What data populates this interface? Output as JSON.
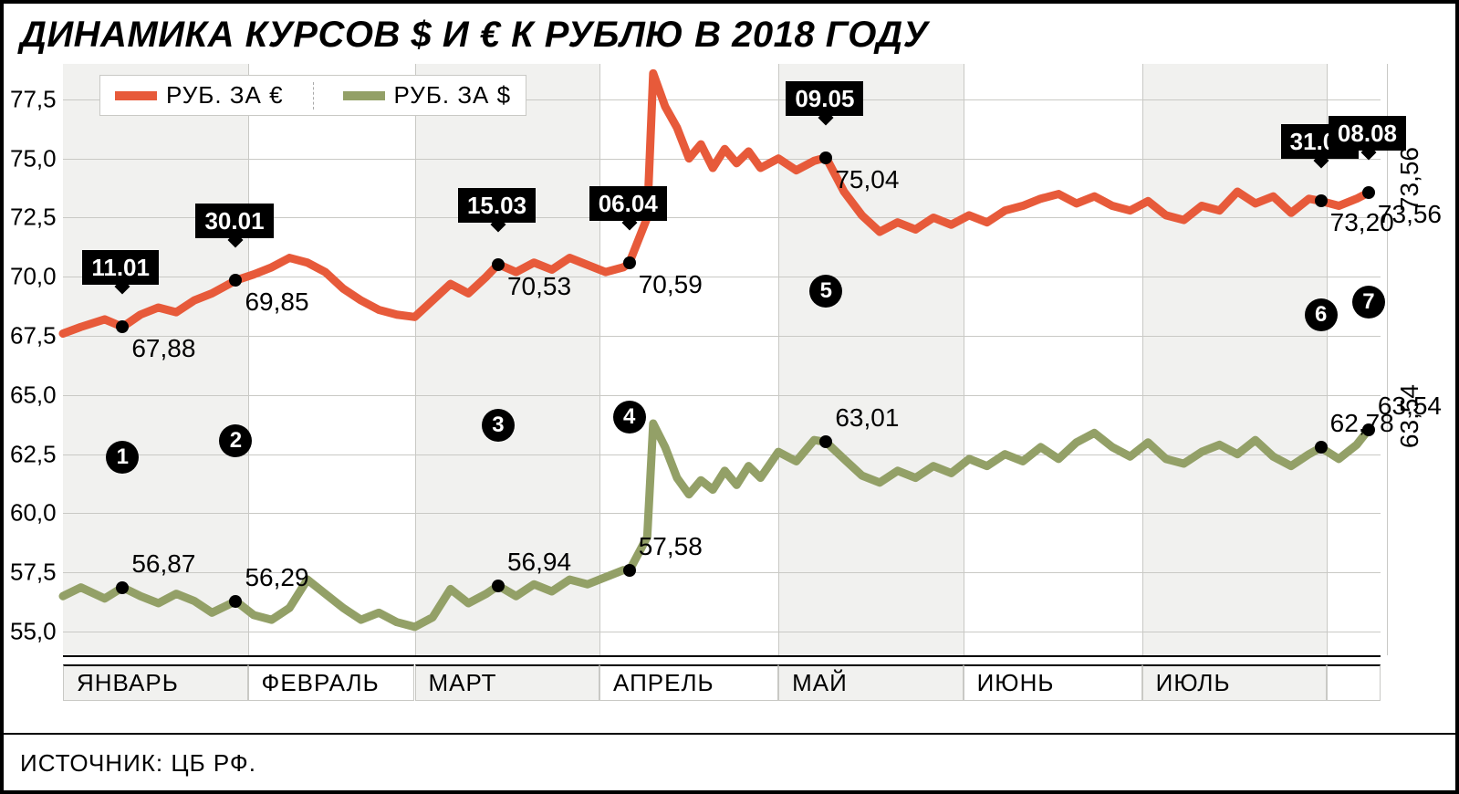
{
  "title": "ДИНАМИКА КУРСОВ $ И € К РУБЛЮ В 2018 ГОДУ",
  "source": "ИСТОЧНИК: ЦБ РФ.",
  "colors": {
    "euro": "#e75a3a",
    "usd": "#93a067",
    "grid": "#c9c9c5",
    "shade": "#f1f1ef",
    "text": "#000000",
    "bg": "#ffffff"
  },
  "legend": {
    "euro": "РУБ. ЗА €",
    "usd": "РУБ. ЗА $"
  },
  "y_axis": {
    "min": 54.0,
    "max": 79.0,
    "ticks": [
      55.0,
      57.5,
      60.0,
      62.5,
      65.0,
      67.5,
      70.0,
      72.5,
      75.0,
      77.5
    ],
    "tick_labels": [
      "55,0",
      "57,5",
      "60,0",
      "62,5",
      "65,0",
      "67,5",
      "70,0",
      "72,5",
      "75,0",
      "77,5"
    ]
  },
  "x_axis": {
    "day_start": 1,
    "day_end": 222,
    "month_starts": [
      1,
      32,
      60,
      91,
      121,
      152,
      182,
      213
    ],
    "month_labels": [
      "ЯНВАРЬ",
      "ФЕВРАЛЬ",
      "МАРТ",
      "АПРЕЛЬ",
      "МАЙ",
      "ИЮНЬ",
      "ИЮЛЬ"
    ],
    "shaded_months": [
      0,
      2,
      4,
      6
    ]
  },
  "events": [
    {
      "n": 1,
      "date": "11.01",
      "day": 11,
      "eur": 67.88,
      "usd": 56.87,
      "eur_label": "67,88",
      "usd_label": "56,87"
    },
    {
      "n": 2,
      "date": "30.01",
      "day": 30,
      "eur": 69.85,
      "usd": 56.29,
      "eur_label": "69,85",
      "usd_label": "56,29"
    },
    {
      "n": 3,
      "date": "15.03",
      "day": 74,
      "eur": 70.53,
      "usd": 56.94,
      "eur_label": "70,53",
      "usd_label": "56,94"
    },
    {
      "n": 4,
      "date": "06.04",
      "day": 96,
      "eur": 70.59,
      "usd": 57.58,
      "eur_label": "70,59",
      "usd_label": "57,58"
    },
    {
      "n": 5,
      "date": "09.05",
      "day": 129,
      "eur": 75.04,
      "usd": 63.01,
      "eur_label": "75,04",
      "usd_label": "63,01"
    },
    {
      "n": 6,
      "date": "31.07",
      "day": 212,
      "eur": 73.2,
      "usd": 62.78,
      "eur_label": "73,20",
      "usd_label": "62,78"
    },
    {
      "n": 7,
      "date": "08.08",
      "day": 220,
      "eur": 73.56,
      "usd": 63.54,
      "eur_label": "73,56",
      "usd_label": "63,54"
    }
  ],
  "series_euro": [
    [
      1,
      67.6
    ],
    [
      4,
      67.88
    ],
    [
      8,
      68.2
    ],
    [
      11,
      67.88
    ],
    [
      14,
      68.4
    ],
    [
      17,
      68.7
    ],
    [
      20,
      68.5
    ],
    [
      23,
      69.0
    ],
    [
      26,
      69.3
    ],
    [
      30,
      69.85
    ],
    [
      33,
      70.1
    ],
    [
      36,
      70.4
    ],
    [
      39,
      70.8
    ],
    [
      42,
      70.6
    ],
    [
      45,
      70.2
    ],
    [
      48,
      69.5
    ],
    [
      51,
      69.0
    ],
    [
      54,
      68.6
    ],
    [
      57,
      68.4
    ],
    [
      60,
      68.3
    ],
    [
      63,
      69.0
    ],
    [
      66,
      69.7
    ],
    [
      69,
      69.3
    ],
    [
      72,
      70.0
    ],
    [
      74,
      70.53
    ],
    [
      77,
      70.2
    ],
    [
      80,
      70.6
    ],
    [
      83,
      70.3
    ],
    [
      86,
      70.8
    ],
    [
      89,
      70.5
    ],
    [
      92,
      70.2
    ],
    [
      95,
      70.4
    ],
    [
      96,
      70.59
    ],
    [
      99,
      72.5
    ],
    [
      100,
      78.6
    ],
    [
      102,
      77.2
    ],
    [
      104,
      76.3
    ],
    [
      106,
      75.0
    ],
    [
      108,
      75.6
    ],
    [
      110,
      74.6
    ],
    [
      112,
      75.4
    ],
    [
      114,
      74.8
    ],
    [
      116,
      75.3
    ],
    [
      118,
      74.6
    ],
    [
      121,
      75.0
    ],
    [
      124,
      74.5
    ],
    [
      127,
      74.9
    ],
    [
      129,
      75.04
    ],
    [
      132,
      73.6
    ],
    [
      135,
      72.6
    ],
    [
      138,
      71.9
    ],
    [
      141,
      72.3
    ],
    [
      144,
      72.0
    ],
    [
      147,
      72.5
    ],
    [
      150,
      72.2
    ],
    [
      153,
      72.6
    ],
    [
      156,
      72.3
    ],
    [
      159,
      72.8
    ],
    [
      162,
      73.0
    ],
    [
      165,
      73.3
    ],
    [
      168,
      73.5
    ],
    [
      171,
      73.1
    ],
    [
      174,
      73.4
    ],
    [
      177,
      73.0
    ],
    [
      180,
      72.8
    ],
    [
      183,
      73.2
    ],
    [
      186,
      72.6
    ],
    [
      189,
      72.4
    ],
    [
      192,
      73.0
    ],
    [
      195,
      72.8
    ],
    [
      198,
      73.6
    ],
    [
      201,
      73.1
    ],
    [
      204,
      73.4
    ],
    [
      207,
      72.7
    ],
    [
      210,
      73.3
    ],
    [
      212,
      73.2
    ],
    [
      215,
      73.0
    ],
    [
      218,
      73.3
    ],
    [
      220,
      73.56
    ]
  ],
  "series_usd": [
    [
      1,
      56.5
    ],
    [
      4,
      56.87
    ],
    [
      8,
      56.4
    ],
    [
      11,
      56.87
    ],
    [
      14,
      56.5
    ],
    [
      17,
      56.2
    ],
    [
      20,
      56.6
    ],
    [
      23,
      56.3
    ],
    [
      26,
      55.8
    ],
    [
      30,
      56.29
    ],
    [
      33,
      55.7
    ],
    [
      36,
      55.5
    ],
    [
      39,
      56.0
    ],
    [
      42,
      57.2
    ],
    [
      45,
      56.6
    ],
    [
      48,
      56.0
    ],
    [
      51,
      55.5
    ],
    [
      54,
      55.8
    ],
    [
      57,
      55.4
    ],
    [
      60,
      55.2
    ],
    [
      63,
      55.6
    ],
    [
      66,
      56.8
    ],
    [
      69,
      56.2
    ],
    [
      72,
      56.6
    ],
    [
      74,
      56.94
    ],
    [
      77,
      56.5
    ],
    [
      80,
      57.0
    ],
    [
      83,
      56.7
    ],
    [
      86,
      57.2
    ],
    [
      89,
      57.0
    ],
    [
      92,
      57.3
    ],
    [
      95,
      57.6
    ],
    [
      96,
      57.58
    ],
    [
      99,
      59.0
    ],
    [
      100,
      63.8
    ],
    [
      102,
      62.8
    ],
    [
      104,
      61.5
    ],
    [
      106,
      60.8
    ],
    [
      108,
      61.4
    ],
    [
      110,
      61.0
    ],
    [
      112,
      61.8
    ],
    [
      114,
      61.2
    ],
    [
      116,
      62.0
    ],
    [
      118,
      61.5
    ],
    [
      121,
      62.6
    ],
    [
      124,
      62.2
    ],
    [
      127,
      63.1
    ],
    [
      129,
      63.01
    ],
    [
      132,
      62.3
    ],
    [
      135,
      61.6
    ],
    [
      138,
      61.3
    ],
    [
      141,
      61.8
    ],
    [
      144,
      61.5
    ],
    [
      147,
      62.0
    ],
    [
      150,
      61.7
    ],
    [
      153,
      62.3
    ],
    [
      156,
      62.0
    ],
    [
      159,
      62.5
    ],
    [
      162,
      62.2
    ],
    [
      165,
      62.8
    ],
    [
      168,
      62.3
    ],
    [
      171,
      63.0
    ],
    [
      174,
      63.4
    ],
    [
      177,
      62.8
    ],
    [
      180,
      62.4
    ],
    [
      183,
      63.0
    ],
    [
      186,
      62.3
    ],
    [
      189,
      62.1
    ],
    [
      192,
      62.6
    ],
    [
      195,
      62.9
    ],
    [
      198,
      62.5
    ],
    [
      201,
      63.1
    ],
    [
      204,
      62.4
    ],
    [
      207,
      62.0
    ],
    [
      210,
      62.5
    ],
    [
      212,
      62.78
    ],
    [
      215,
      62.3
    ],
    [
      218,
      62.9
    ],
    [
      220,
      63.54
    ]
  ],
  "end_labels": {
    "eur": "73,56",
    "usd": "63,54"
  }
}
